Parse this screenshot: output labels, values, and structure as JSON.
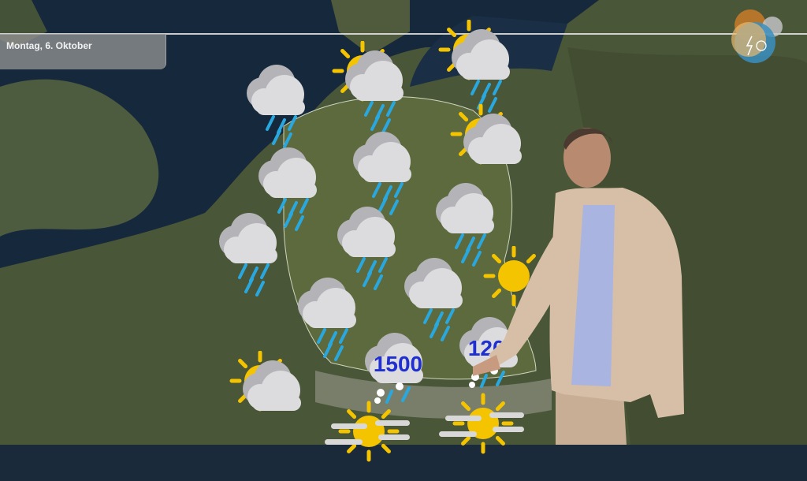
{
  "header": {
    "date_label": "Montag, 6. Oktober"
  },
  "logo": {
    "icon": "weather-logo-icon"
  },
  "colors": {
    "rain": "#29a8e0",
    "sun": "#f5c400",
    "cloud_front": "#dcdcde",
    "cloud_back": "#b4b4b8",
    "altitude_text": "#1f2fd0"
  },
  "map": {
    "icons": [
      {
        "type": "rain"
      },
      {
        "type": "sun-cloud-rain"
      },
      {
        "type": "sun-cloud-rain"
      },
      {
        "type": "sun-cloud"
      },
      {
        "type": "rain"
      },
      {
        "type": "rain"
      },
      {
        "type": "rain"
      },
      {
        "type": "rain"
      },
      {
        "type": "rain"
      },
      {
        "type": "rain"
      },
      {
        "type": "rain"
      },
      {
        "type": "snow-rain",
        "altitude": "1500"
      },
      {
        "type": "snow-rain",
        "altitude": "1200"
      },
      {
        "type": "sun-cloud"
      },
      {
        "type": "sun-fog"
      },
      {
        "type": "sun-fog"
      },
      {
        "type": "sun"
      }
    ]
  }
}
